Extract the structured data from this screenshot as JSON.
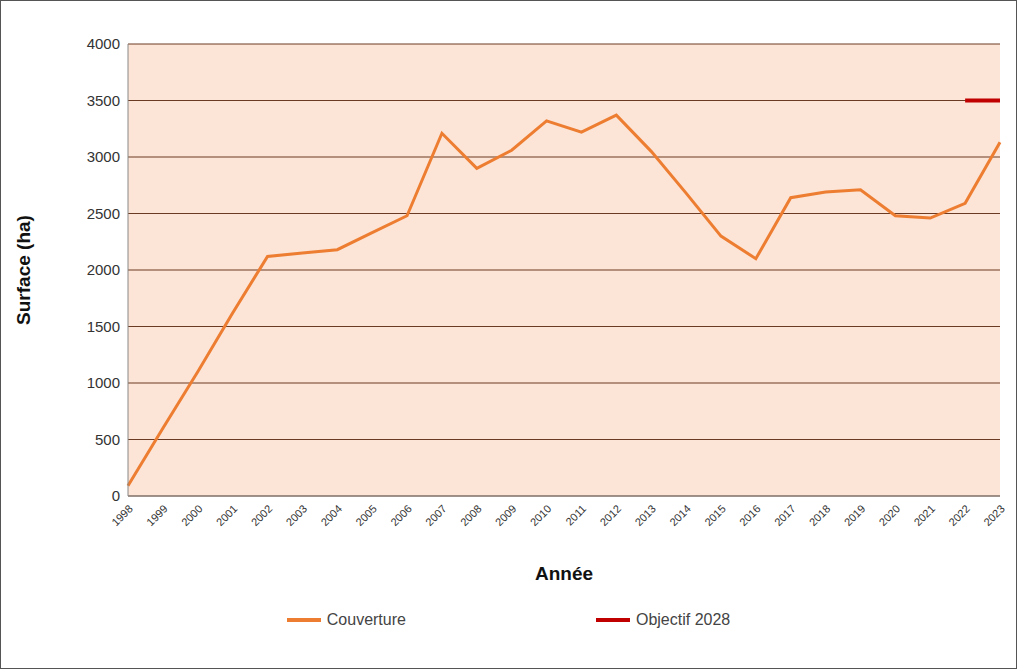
{
  "chart_data": {
    "type": "line",
    "x_label": "Année",
    "y_label": "Surface (ha)",
    "categories": [
      "1998",
      "1999",
      "2000",
      "2001",
      "2002",
      "2003",
      "2004",
      "2005",
      "2006",
      "2007",
      "2008",
      "2009",
      "2010",
      "2011",
      "2012",
      "2013",
      "2014",
      "2015",
      "2016",
      "2017",
      "2018",
      "2019",
      "2020",
      "2021",
      "2022",
      "2023"
    ],
    "series": [
      {
        "name": "Couverture",
        "color": "#ED7D31",
        "values": [
          90,
          600,
          1100,
          1620,
          2120,
          2150,
          2180,
          2330,
          2480,
          3210,
          2900,
          3060,
          3320,
          3220,
          3370,
          3050,
          2680,
          2300,
          2100,
          2640,
          2690,
          2710,
          2480,
          2460,
          2590,
          3130
        ]
      },
      {
        "name": "Objectif 2028",
        "color": "#C00000",
        "values": [
          null,
          null,
          null,
          null,
          null,
          null,
          null,
          null,
          null,
          null,
          null,
          null,
          null,
          null,
          null,
          null,
          null,
          null,
          null,
          null,
          null,
          null,
          null,
          null,
          3500,
          3500
        ]
      }
    ],
    "ylim": [
      0,
      4000
    ],
    "yticks": [
      0,
      500,
      1000,
      1500,
      2000,
      2500,
      3000,
      3500,
      4000
    ],
    "grid": true,
    "legend": "bottom"
  }
}
